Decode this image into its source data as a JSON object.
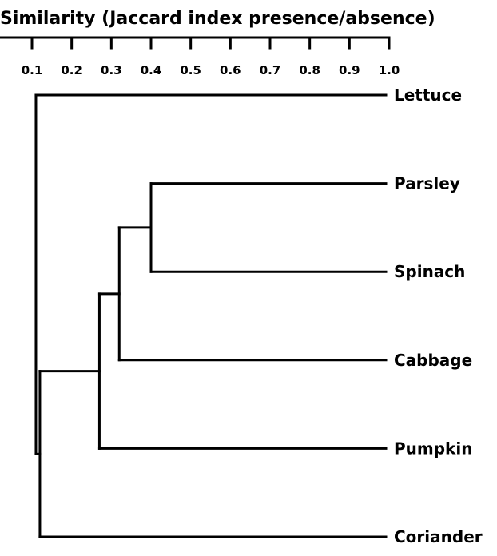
{
  "chart_data": {
    "type": "dendrogram",
    "axis_title": "Similarity (Jaccard index presence/absence)",
    "axis_position": "top",
    "x_ticks": [
      "0.1",
      "0.2",
      "0.3",
      "0.4",
      "0.5",
      "0.6",
      "0.7",
      "0.8",
      "0.9",
      "1.0"
    ],
    "xlim": [
      0.1,
      1.0
    ],
    "leaves": [
      "Lettuce",
      "Parsley",
      "Spinach",
      "Cabbage",
      "Pumpkin",
      "Coriander"
    ],
    "merges": [
      {
        "id": "n1",
        "children": [
          "Parsley",
          "Spinach"
        ],
        "similarity": 0.4
      },
      {
        "id": "n2",
        "children": [
          "n1",
          "Cabbage"
        ],
        "similarity": 0.32
      },
      {
        "id": "n3",
        "children": [
          "n2",
          "Pumpkin"
        ],
        "similarity": 0.27
      },
      {
        "id": "n4",
        "children": [
          "n3",
          "Coriander"
        ],
        "similarity": 0.12
      },
      {
        "id": "n5",
        "children": [
          "Lettuce",
          "n4"
        ],
        "similarity": 0.11
      }
    ],
    "line_color": "#000000"
  }
}
